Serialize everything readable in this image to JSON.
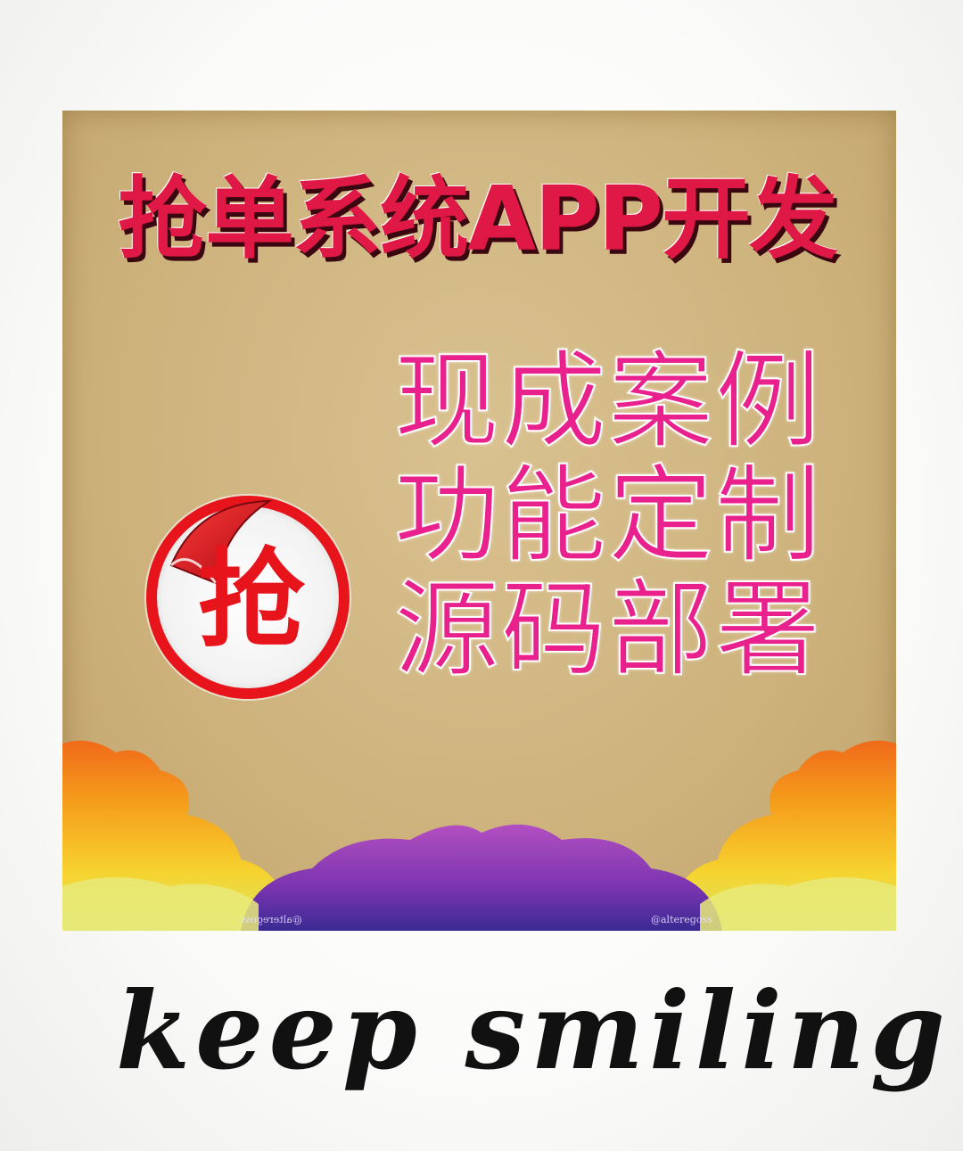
{
  "poster": {
    "title": "抢单系统APP开发",
    "features": [
      "现成案例",
      "功能定制",
      "源码部署"
    ],
    "sticker_char": "抢",
    "watermarks": [
      "@alteregoss",
      "@alteregoss"
    ]
  },
  "caption": "keep smiling",
  "colors": {
    "title": "#e01845",
    "features": "#e8218c",
    "sticker_red": "#e8141c",
    "poster_bg": "#cdb27c"
  }
}
